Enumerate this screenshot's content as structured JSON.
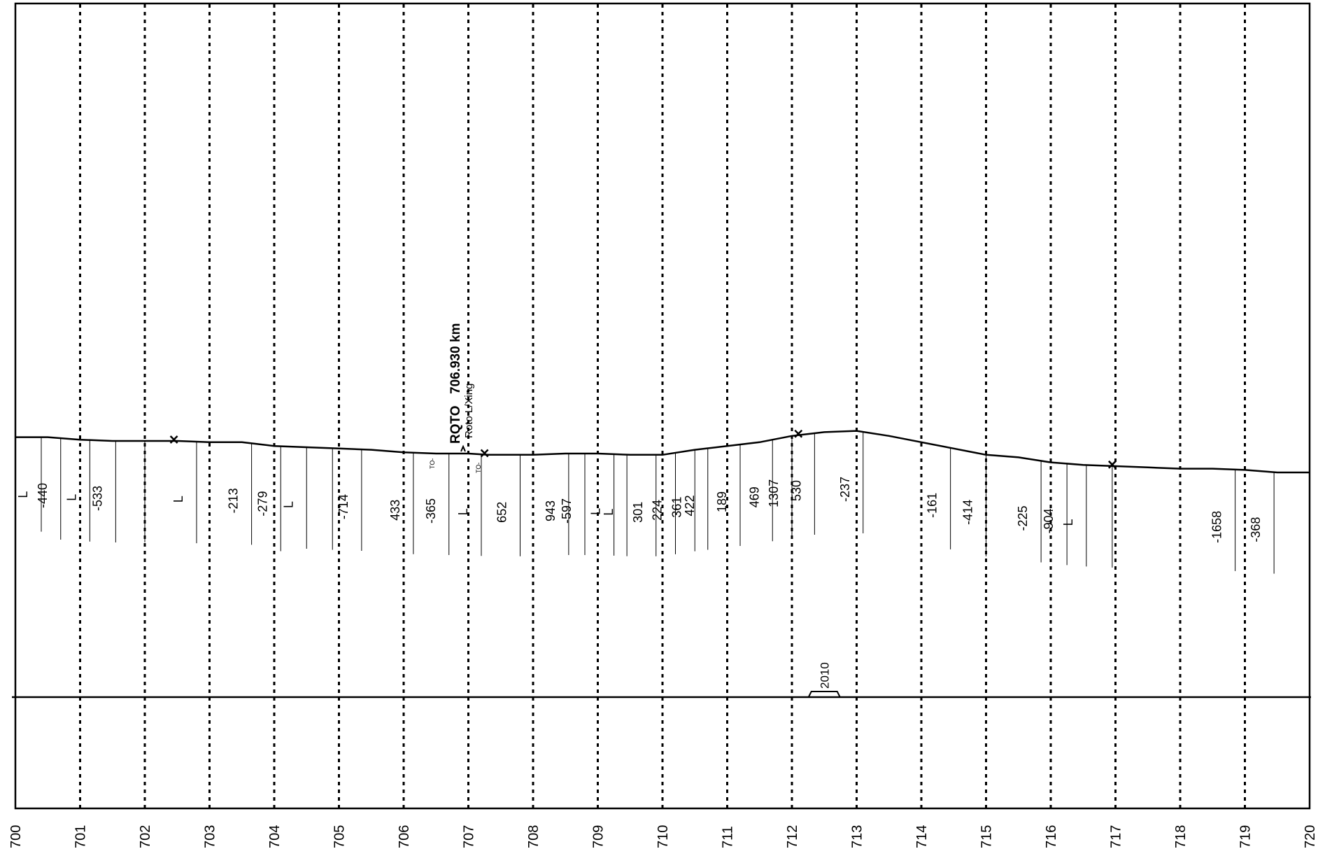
{
  "km_ticks": [
    "700",
    "701",
    "702",
    "703",
    "704",
    "705",
    "706",
    "707",
    "708",
    "709",
    "710",
    "711",
    "712",
    "713",
    "714",
    "715",
    "716",
    "717",
    "718",
    "719",
    "720"
  ],
  "profile_km": [
    700,
    700.5,
    701,
    701.5,
    702,
    702.5,
    703,
    703.5,
    704,
    704.5,
    705,
    705.5,
    706,
    706.5,
    707,
    707.3,
    707.6,
    708,
    708.5,
    709,
    709.5,
    710,
    710.5,
    711,
    711.5,
    712,
    712.5,
    713,
    713.5,
    714,
    714.5,
    715,
    715.5,
    716,
    716.5,
    717,
    717.5,
    718,
    718.5,
    719,
    719.5,
    720
  ],
  "profile_elev": [
    623,
    623,
    621,
    620,
    620,
    620,
    619,
    619,
    616,
    615,
    614,
    613,
    611,
    610,
    610,
    609,
    609,
    609,
    610,
    610,
    609,
    609,
    613,
    616,
    619,
    624,
    627,
    628,
    624,
    619,
    614,
    609,
    607,
    603,
    601,
    600,
    599,
    598,
    598,
    597,
    595,
    595
  ],
  "features": [
    {
      "km": 700.4,
      "label": "L",
      "len": 135
    },
    {
      "km": 700.7,
      "label": "-440",
      "len": 145
    },
    {
      "km": 701.15,
      "label": "L",
      "len": 145
    },
    {
      "km": 701.55,
      "label": "-533",
      "len": 145
    },
    {
      "km": 702.0,
      "label": "",
      "len": 145
    },
    {
      "km": 702.8,
      "label": "L",
      "len": 145
    },
    {
      "km": 703.65,
      "label": "-213",
      "len": 145
    },
    {
      "km": 704.1,
      "label": "-279",
      "len": 150
    },
    {
      "km": 704.5,
      "label": "L",
      "len": 145
    },
    {
      "km": 704.9,
      "label": "",
      "len": 145
    },
    {
      "km": 705.35,
      "label": "-714",
      "len": 145
    },
    {
      "km": 706.15,
      "label": "433",
      "len": 145
    },
    {
      "km": 706.7,
      "label": "-365",
      "len": 145
    },
    {
      "km": 707.2,
      "label": "L",
      "len": 145
    },
    {
      "km": 707.8,
      "label": "652",
      "len": 145
    },
    {
      "km": 708.55,
      "label": "943",
      "len": 145
    },
    {
      "km": 708.8,
      "label": "-597",
      "len": 145
    },
    {
      "km": 709.25,
      "label": "L",
      "len": 145
    },
    {
      "km": 709.45,
      "label": "L",
      "len": 145
    },
    {
      "km": 709.9,
      "label": "301",
      "len": 145
    },
    {
      "km": 710.2,
      "label": "224",
      "len": 145
    },
    {
      "km": 710.5,
      "label": "361",
      "len": 145
    },
    {
      "km": 710.7,
      "label": "422",
      "len": 145
    },
    {
      "km": 711.2,
      "label": "189",
      "len": 145
    },
    {
      "km": 711.7,
      "label": "469",
      "len": 145
    },
    {
      "km": 712.0,
      "label": "1307",
      "len": 145
    },
    {
      "km": 712.35,
      "label": "530",
      "len": 145
    },
    {
      "km": 713.1,
      "label": "-237",
      "len": 145
    },
    {
      "km": 714.45,
      "label": "-161",
      "len": 145
    },
    {
      "km": 715.0,
      "label": "-414",
      "len": 145
    },
    {
      "km": 715.85,
      "label": "-225",
      "len": 145
    },
    {
      "km": 716.25,
      "label": "-904",
      "len": 145
    },
    {
      "km": 716.55,
      "label": "L",
      "len": 145
    },
    {
      "km": 716.95,
      "label": "",
      "len": 145
    },
    {
      "km": 718.85,
      "label": "-1658",
      "len": 145
    },
    {
      "km": 719.45,
      "label": "-368",
      "len": 145
    }
  ],
  "crossings": [
    702.45,
    707.25,
    712.1,
    716.95
  ],
  "station": {
    "km": 706.93,
    "name": "RQTO",
    "chainage": "706.930 km",
    "subtitle": "Roto L/Xing",
    "to_left": "TO-",
    "to_right": "TO-"
  },
  "bridge": {
    "km_start": 712.3,
    "km_end": 712.7,
    "label": "2010"
  }
}
